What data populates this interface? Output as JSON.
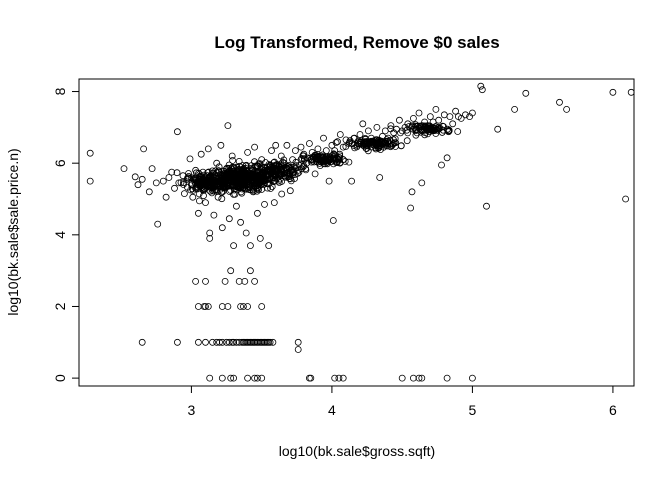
{
  "chart_data": {
    "type": "scatter",
    "title": "Log Transformed, Remove $0 sales",
    "xlabel": "log10(bk.sale$gross.sqft)",
    "ylabel": "log10(bk.sale$sale.price.n)",
    "xlim": [
      2.2,
      6.15
    ],
    "ylim": [
      -0.22,
      8.35
    ],
    "xticks": [
      3,
      4,
      5,
      6
    ],
    "yticks": [
      0,
      2,
      4,
      6,
      8
    ],
    "grid": false,
    "legend": "none",
    "point_color": "#000000",
    "points": [
      [
        2.28,
        6.28
      ],
      [
        2.28,
        5.5
      ],
      [
        2.52,
        5.85
      ],
      [
        2.6,
        5.62
      ],
      [
        2.62,
        5.4
      ],
      [
        2.65,
        5.55
      ],
      [
        2.66,
        6.4
      ],
      [
        2.7,
        5.2
      ],
      [
        2.72,
        5.85
      ],
      [
        2.75,
        5.45
      ],
      [
        2.76,
        4.3
      ],
      [
        2.8,
        5.5
      ],
      [
        2.82,
        5.05
      ],
      [
        2.84,
        5.6
      ],
      [
        2.86,
        5.75
      ],
      [
        2.88,
        5.3
      ],
      [
        2.9,
        6.88
      ],
      [
        2.91,
        5.45
      ],
      [
        2.94,
        5.65
      ],
      [
        2.95,
        5.15
      ],
      [
        2.97,
        5.55
      ],
      [
        2.99,
        6.12
      ],
      [
        3.0,
        5.4
      ],
      [
        3.01,
        5.05
      ],
      [
        3.03,
        5.8
      ],
      [
        3.05,
        4.6
      ],
      [
        3.07,
        6.25
      ],
      [
        3.09,
        5.45
      ],
      [
        3.1,
        4.9
      ],
      [
        3.12,
        6.4
      ],
      [
        3.13,
        3.9
      ],
      [
        3.13,
        4.05
      ],
      [
        3.14,
        5.35
      ],
      [
        3.16,
        4.55
      ],
      [
        3.18,
        6.0
      ],
      [
        3.19,
        5.05
      ],
      [
        3.21,
        6.5
      ],
      [
        3.22,
        4.2
      ],
      [
        3.24,
        5.6
      ],
      [
        3.26,
        7.05
      ],
      [
        3.27,
        4.45
      ],
      [
        3.29,
        6.2
      ],
      [
        3.3,
        3.7
      ],
      [
        3.32,
        4.8
      ],
      [
        3.34,
        6.05
      ],
      [
        3.35,
        4.35
      ],
      [
        3.37,
        5.85
      ],
      [
        3.39,
        4.05
      ],
      [
        3.4,
        6.3
      ],
      [
        3.42,
        3.7
      ],
      [
        3.44,
        5.2
      ],
      [
        3.45,
        6.45
      ],
      [
        3.47,
        4.6
      ],
      [
        3.49,
        3.9
      ],
      [
        3.5,
        6.1
      ],
      [
        3.52,
        4.85
      ],
      [
        3.54,
        5.9
      ],
      [
        3.55,
        3.7
      ],
      [
        3.57,
        6.35
      ],
      [
        3.59,
        4.9
      ],
      [
        3.6,
        6.5
      ],
      [
        3.62,
        5.5
      ],
      [
        3.64,
        6.2
      ],
      [
        3.66,
        6.0
      ],
      [
        3.68,
        6.5
      ],
      [
        3.7,
        5.7
      ],
      [
        3.72,
        6.1
      ],
      [
        3.74,
        6.35
      ],
      [
        3.76,
        5.8
      ],
      [
        3.78,
        6.45
      ],
      [
        3.8,
        6.25
      ],
      [
        3.82,
        6.0
      ],
      [
        3.84,
        6.55
      ],
      [
        3.86,
        6.3
      ],
      [
        3.88,
        5.7
      ],
      [
        3.9,
        6.4
      ],
      [
        3.92,
        6.2
      ],
      [
        3.94,
        6.7
      ],
      [
        3.96,
        6.35
      ],
      [
        3.98,
        5.5
      ],
      [
        4.0,
        6.5
      ],
      [
        4.01,
        4.4
      ],
      [
        4.02,
        6.35
      ],
      [
        4.04,
        6.6
      ],
      [
        4.06,
        6.8
      ],
      [
        4.08,
        6.45
      ],
      [
        4.1,
        6.65
      ],
      [
        4.12,
        6.55
      ],
      [
        4.14,
        5.5
      ],
      [
        4.16,
        6.7
      ],
      [
        4.18,
        6.5
      ],
      [
        4.2,
        6.8
      ],
      [
        4.22,
        7.1
      ],
      [
        4.24,
        6.6
      ],
      [
        4.26,
        6.9
      ],
      [
        4.28,
        6.7
      ],
      [
        4.3,
        6.55
      ],
      [
        4.32,
        7.0
      ],
      [
        4.34,
        5.6
      ],
      [
        4.36,
        6.75
      ],
      [
        4.38,
        6.9
      ],
      [
        4.4,
        6.7
      ],
      [
        4.42,
        7.05
      ],
      [
        4.44,
        6.85
      ],
      [
        4.46,
        6.95
      ],
      [
        4.48,
        7.2
      ],
      [
        4.5,
        6.9
      ],
      [
        4.52,
        7.0
      ],
      [
        4.54,
        7.1
      ],
      [
        4.56,
        4.75
      ],
      [
        4.57,
        5.2
      ],
      [
        4.58,
        7.25
      ],
      [
        4.6,
        6.95
      ],
      [
        4.62,
        7.4
      ],
      [
        4.64,
        5.45
      ],
      [
        4.66,
        7.15
      ],
      [
        4.68,
        7.0
      ],
      [
        4.7,
        7.3
      ],
      [
        4.72,
        7.15
      ],
      [
        4.74,
        7.5
      ],
      [
        4.76,
        7.2
      ],
      [
        4.78,
        5.95
      ],
      [
        4.8,
        7.35
      ],
      [
        4.82,
        6.15
      ],
      [
        4.84,
        7.3
      ],
      [
        4.86,
        7.1
      ],
      [
        4.88,
        7.45
      ],
      [
        4.9,
        7.3
      ],
      [
        4.92,
        7.25
      ],
      [
        4.95,
        7.35
      ],
      [
        4.98,
        7.3
      ],
      [
        5.0,
        7.4
      ],
      [
        5.06,
        8.15
      ],
      [
        5.07,
        8.05
      ],
      [
        5.1,
        4.8
      ],
      [
        5.18,
        6.95
      ],
      [
        5.3,
        7.5
      ],
      [
        5.38,
        7.95
      ],
      [
        5.62,
        7.7
      ],
      [
        5.67,
        7.5
      ],
      [
        6.0,
        7.98
      ],
      [
        6.09,
        5.0
      ],
      [
        6.13,
        7.98
      ],
      [
        3.03,
        2.7
      ],
      [
        3.1,
        2.7
      ],
      [
        3.24,
        2.7
      ],
      [
        3.34,
        2.7
      ],
      [
        3.45,
        2.7
      ],
      [
        3.28,
        3.0
      ],
      [
        3.38,
        2.7
      ],
      [
        3.42,
        3.0
      ],
      [
        3.05,
        2.0
      ],
      [
        3.09,
        2.0
      ],
      [
        3.1,
        2.0
      ],
      [
        3.12,
        2.0
      ],
      [
        3.22,
        2.0
      ],
      [
        3.26,
        2.0
      ],
      [
        3.35,
        2.0
      ],
      [
        3.37,
        2.0
      ],
      [
        3.4,
        2.0
      ],
      [
        3.5,
        2.0
      ],
      [
        2.65,
        1.0
      ],
      [
        2.9,
        1.0
      ],
      [
        3.05,
        1.0
      ],
      [
        3.1,
        1.0
      ],
      [
        3.15,
        1.0
      ],
      [
        3.18,
        1.0
      ],
      [
        3.2,
        1.0
      ],
      [
        3.22,
        1.0
      ],
      [
        3.25,
        1.0
      ],
      [
        3.27,
        1.0
      ],
      [
        3.29,
        1.0
      ],
      [
        3.3,
        1.0
      ],
      [
        3.32,
        1.0
      ],
      [
        3.34,
        1.0
      ],
      [
        3.36,
        1.0
      ],
      [
        3.37,
        1.0
      ],
      [
        3.38,
        1.0
      ],
      [
        3.39,
        1.0
      ],
      [
        3.4,
        1.0
      ],
      [
        3.41,
        1.0
      ],
      [
        3.42,
        1.0
      ],
      [
        3.43,
        1.0
      ],
      [
        3.44,
        1.0
      ],
      [
        3.45,
        1.0
      ],
      [
        3.46,
        1.0
      ],
      [
        3.47,
        1.0
      ],
      [
        3.48,
        1.0
      ],
      [
        3.49,
        1.0
      ],
      [
        3.5,
        1.0
      ],
      [
        3.51,
        1.0
      ],
      [
        3.52,
        1.0
      ],
      [
        3.53,
        1.0
      ],
      [
        3.54,
        1.0
      ],
      [
        3.55,
        1.0
      ],
      [
        3.56,
        1.0
      ],
      [
        3.58,
        1.0
      ],
      [
        3.76,
        1.0
      ],
      [
        3.76,
        0.8
      ],
      [
        3.13,
        0.0
      ],
      [
        3.22,
        0.0
      ],
      [
        3.28,
        0.0
      ],
      [
        3.3,
        0.0
      ],
      [
        3.4,
        0.0
      ],
      [
        3.45,
        0.0
      ],
      [
        3.47,
        0.0
      ],
      [
        3.5,
        0.0
      ],
      [
        3.84,
        0.0
      ],
      [
        3.85,
        0.0
      ],
      [
        4.02,
        0.0
      ],
      [
        4.05,
        0.0
      ],
      [
        4.08,
        0.0
      ],
      [
        4.5,
        0.0
      ],
      [
        4.58,
        0.0
      ],
      [
        4.62,
        0.0
      ],
      [
        4.64,
        0.0
      ],
      [
        4.82,
        0.0
      ],
      [
        5.0,
        0.0
      ]
    ],
    "dense_clusters": [
      {
        "x_center": 3.35,
        "y_center": 5.55,
        "x_spread": 0.26,
        "y_spread": 0.32,
        "count": 520
      },
      {
        "x_center": 3.1,
        "y_center": 5.45,
        "x_spread": 0.15,
        "y_spread": 0.25,
        "count": 140
      },
      {
        "x_center": 3.6,
        "y_center": 5.8,
        "x_spread": 0.18,
        "y_spread": 0.25,
        "count": 140
      },
      {
        "x_center": 3.95,
        "y_center": 6.1,
        "x_spread": 0.15,
        "y_spread": 0.15,
        "count": 110
      },
      {
        "x_center": 4.3,
        "y_center": 6.55,
        "x_spread": 0.18,
        "y_spread": 0.13,
        "count": 110
      },
      {
        "x_center": 4.7,
        "y_center": 6.95,
        "x_spread": 0.15,
        "y_spread": 0.12,
        "count": 80
      }
    ]
  }
}
